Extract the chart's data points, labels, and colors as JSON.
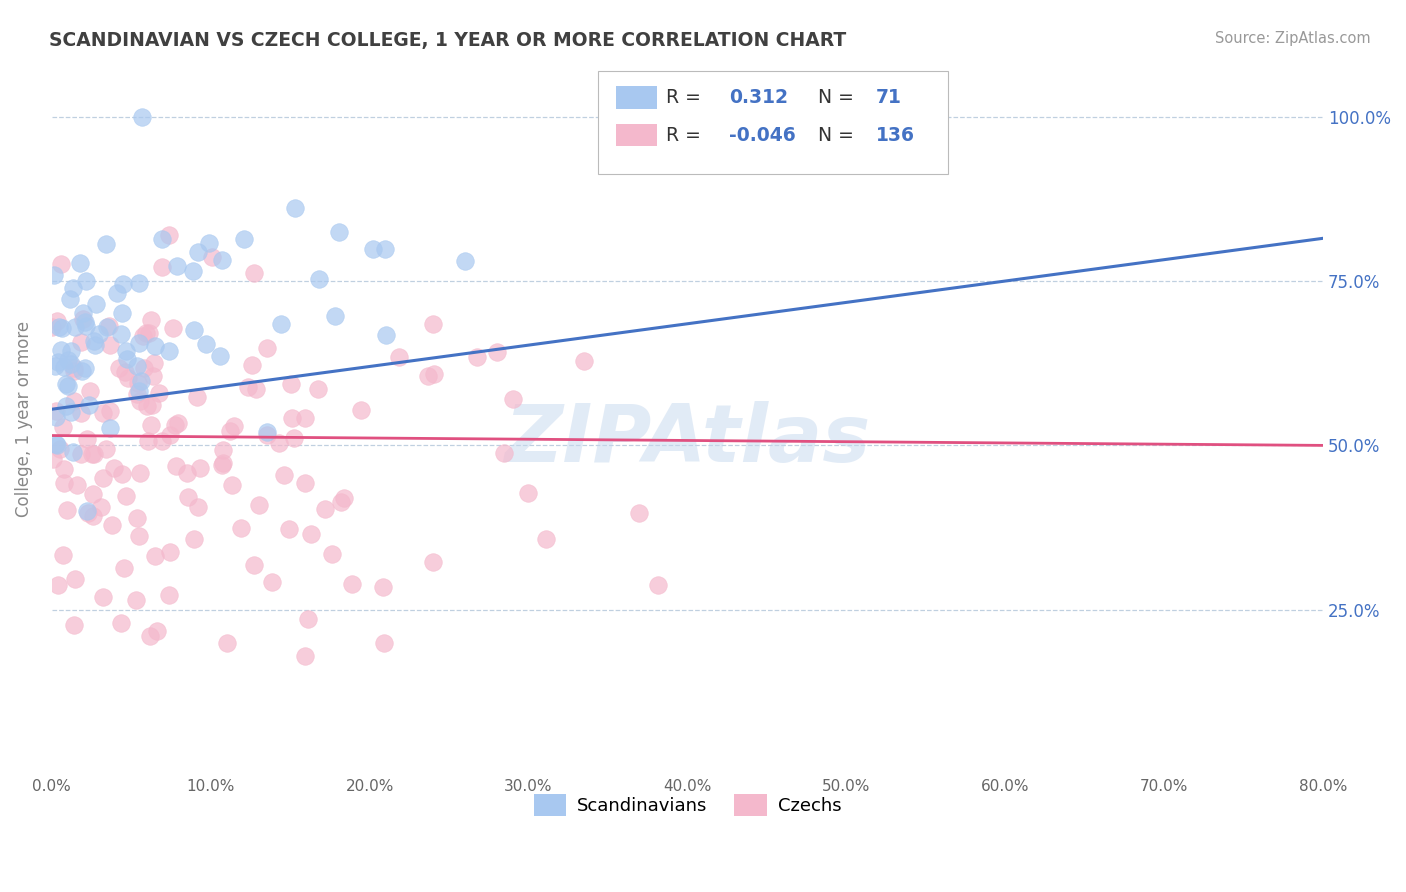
{
  "title": "SCANDINAVIAN VS CZECH COLLEGE, 1 YEAR OR MORE CORRELATION CHART",
  "source_text": "Source: ZipAtlas.com",
  "xlabel_scand": "Scandinavians",
  "xlabel_czech": "Czechs",
  "ylabel": "College, 1 year or more",
  "watermark": "ZIPAtlas",
  "xmin": 0.0,
  "xmax": 0.8,
  "ymin": 0.0,
  "ymax": 1.08,
  "r_scand": 0.312,
  "n_scand": 71,
  "r_czech": -0.046,
  "n_czech": 136,
  "color_scand": "#a8c8f0",
  "color_czech": "#f4b8cc",
  "line_color_scand": "#4472c4",
  "line_color_czech": "#e05080",
  "bg_color": "#ffffff",
  "grid_color": "#c0d0e0",
  "title_color": "#404040",
  "legend_r_color": "#4472c4",
  "ytick_color": "#4472c4",
  "xtick_color": "#666666",
  "ylabel_color": "#888888"
}
